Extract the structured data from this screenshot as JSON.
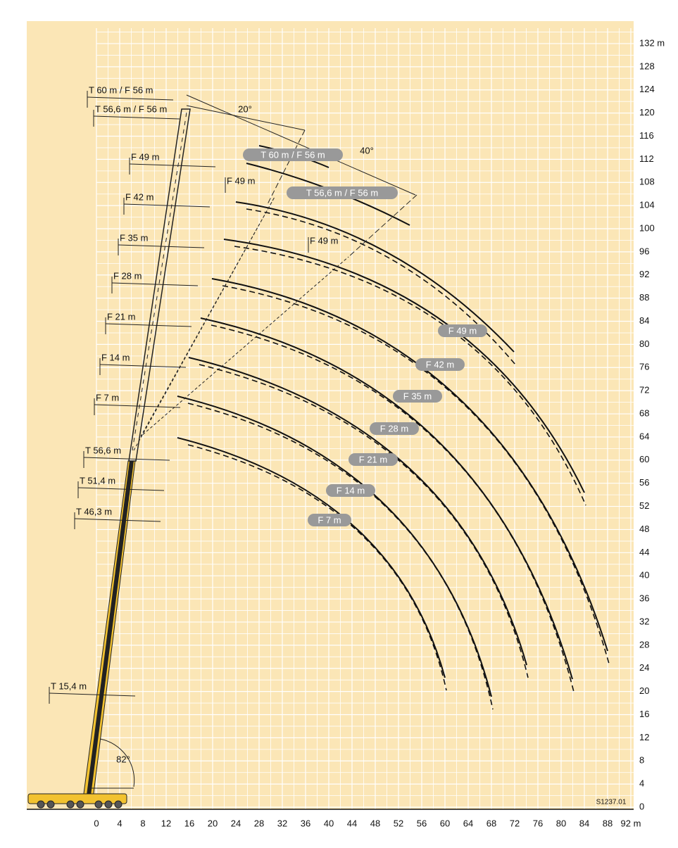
{
  "axes": {
    "xticks": [
      0,
      4,
      8,
      12,
      16,
      20,
      24,
      28,
      32,
      36,
      40,
      44,
      48,
      52,
      56,
      60,
      64,
      68,
      72,
      76,
      80,
      84,
      88,
      {
        "value": 92,
        "label": "92 m"
      }
    ],
    "yticks": [
      0,
      4,
      8,
      12,
      16,
      20,
      24,
      28,
      32,
      36,
      40,
      44,
      48,
      52,
      56,
      60,
      64,
      68,
      72,
      76,
      80,
      84,
      88,
      92,
      96,
      100,
      104,
      108,
      112,
      116,
      120,
      124,
      128,
      {
        "value": 132,
        "label": "132 m"
      }
    ]
  },
  "boom_labels": [
    "T 60 m / F 56 m",
    "T 56,6 m / F 56 m",
    "F 49 m",
    "F 42 m",
    "F 35 m",
    "F 28 m",
    "F 21 m",
    "F 14 m",
    "F 7 m",
    "T 56,6 m",
    "T 51,4 m",
    "T 46,3 m",
    "T 15,4 m"
  ],
  "jib_labels": [
    "F 49 m",
    "F 49 m"
  ],
  "curve_labels": [
    "T 60 m / F 56 m",
    "T 56,6 m / F 56 m",
    "F 49 m",
    "F 42 m",
    "F 35 m",
    "F 28 m",
    "F 21 m",
    "F 14 m",
    "F 7 m"
  ],
  "angles": [
    "20°",
    "40°",
    "82°"
  ],
  "drawing_code": "S1237.01"
}
